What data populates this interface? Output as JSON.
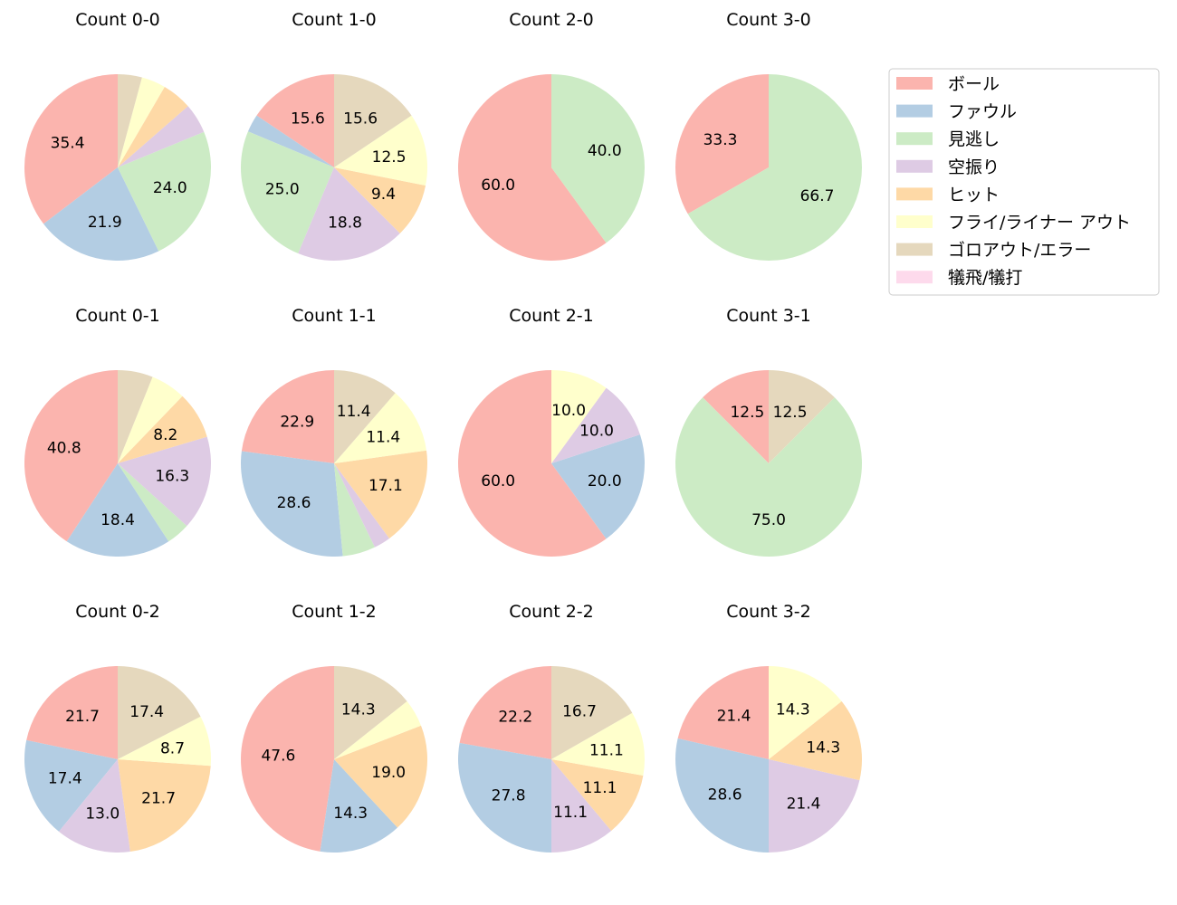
{
  "chart_data": {
    "type": "pie",
    "legend_position": "right",
    "legend": [
      {
        "label": "ボール",
        "color": "#fbb4ae"
      },
      {
        "label": "ファウル",
        "color": "#b3cde3"
      },
      {
        "label": "見逃し",
        "color": "#ccebc5"
      },
      {
        "label": "空振り",
        "color": "#decbe4"
      },
      {
        "label": "ヒット",
        "color": "#fed9a6"
      },
      {
        "label": "フライ/ライナー アウト",
        "color": "#ffffcc"
      },
      {
        "label": "ゴロアウト/エラー",
        "color": "#e5d8bd"
      },
      {
        "label": "犠飛/犠打",
        "color": "#fddaec"
      }
    ],
    "charts": [
      {
        "title": "Count 0-0",
        "values": [
          35.4,
          21.9,
          24.0,
          5.2,
          5.2,
          4.2,
          4.2,
          0
        ],
        "labels": [
          "35.4",
          "21.9",
          "24.0",
          "",
          "",
          "",
          "",
          ""
        ]
      },
      {
        "title": "Count 1-0",
        "values": [
          15.6,
          3.1,
          25.0,
          18.8,
          9.4,
          12.5,
          15.6,
          0
        ],
        "labels": [
          "15.6",
          "",
          "25.0",
          "18.8",
          "9.4",
          "12.5",
          "15.6",
          ""
        ]
      },
      {
        "title": "Count 2-0",
        "values": [
          60.0,
          0,
          40.0,
          0,
          0,
          0,
          0,
          0
        ],
        "labels": [
          "60.0",
          "",
          "40.0",
          "",
          "",
          "",
          "",
          ""
        ]
      },
      {
        "title": "Count 3-0",
        "values": [
          33.3,
          0,
          66.7,
          0,
          0,
          0,
          0,
          0
        ],
        "labels": [
          "33.3",
          "",
          "66.7",
          "",
          "",
          "",
          "",
          ""
        ]
      },
      {
        "title": "Count 0-1",
        "values": [
          40.8,
          18.4,
          4.1,
          16.3,
          8.2,
          6.1,
          6.1,
          0
        ],
        "labels": [
          "40.8",
          "18.4",
          "",
          "16.3",
          "8.2",
          "",
          "",
          ""
        ]
      },
      {
        "title": "Count 1-1",
        "values": [
          22.9,
          28.6,
          5.7,
          2.9,
          17.1,
          11.4,
          11.4,
          0
        ],
        "labels": [
          "22.9",
          "28.6",
          "",
          "",
          "17.1",
          "11.4",
          "11.4",
          ""
        ]
      },
      {
        "title": "Count 2-1",
        "values": [
          60.0,
          20.0,
          0,
          10.0,
          0,
          10.0,
          0,
          0
        ],
        "labels": [
          "60.0",
          "20.0",
          "",
          "10.0",
          "",
          "10.0",
          "",
          ""
        ]
      },
      {
        "title": "Count 3-1",
        "values": [
          12.5,
          0,
          75.0,
          0,
          0,
          0,
          12.5,
          0
        ],
        "labels": [
          "12.5",
          "",
          "75.0",
          "",
          "",
          "",
          "12.5",
          ""
        ]
      },
      {
        "title": "Count 0-2",
        "values": [
          21.7,
          17.4,
          0,
          13.0,
          21.7,
          8.7,
          17.4,
          0
        ],
        "labels": [
          "21.7",
          "17.4",
          "",
          "13.0",
          "21.7",
          "8.7",
          "17.4",
          ""
        ]
      },
      {
        "title": "Count 1-2",
        "values": [
          47.6,
          14.3,
          0,
          0,
          19.0,
          4.8,
          14.3,
          0
        ],
        "labels": [
          "47.6",
          "14.3",
          "",
          "",
          "19.0",
          "",
          "14.3",
          ""
        ]
      },
      {
        "title": "Count 2-2",
        "values": [
          22.2,
          27.8,
          0,
          11.1,
          11.1,
          11.1,
          16.7,
          0
        ],
        "labels": [
          "22.2",
          "27.8",
          "",
          "11.1",
          "11.1",
          "11.1",
          "16.7",
          ""
        ]
      },
      {
        "title": "Count 3-2",
        "values": [
          21.4,
          28.6,
          0,
          21.4,
          14.3,
          14.3,
          0,
          0
        ],
        "labels": [
          "21.4",
          "28.6",
          "",
          "21.4",
          "14.3",
          "14.3",
          "",
          ""
        ]
      }
    ]
  }
}
